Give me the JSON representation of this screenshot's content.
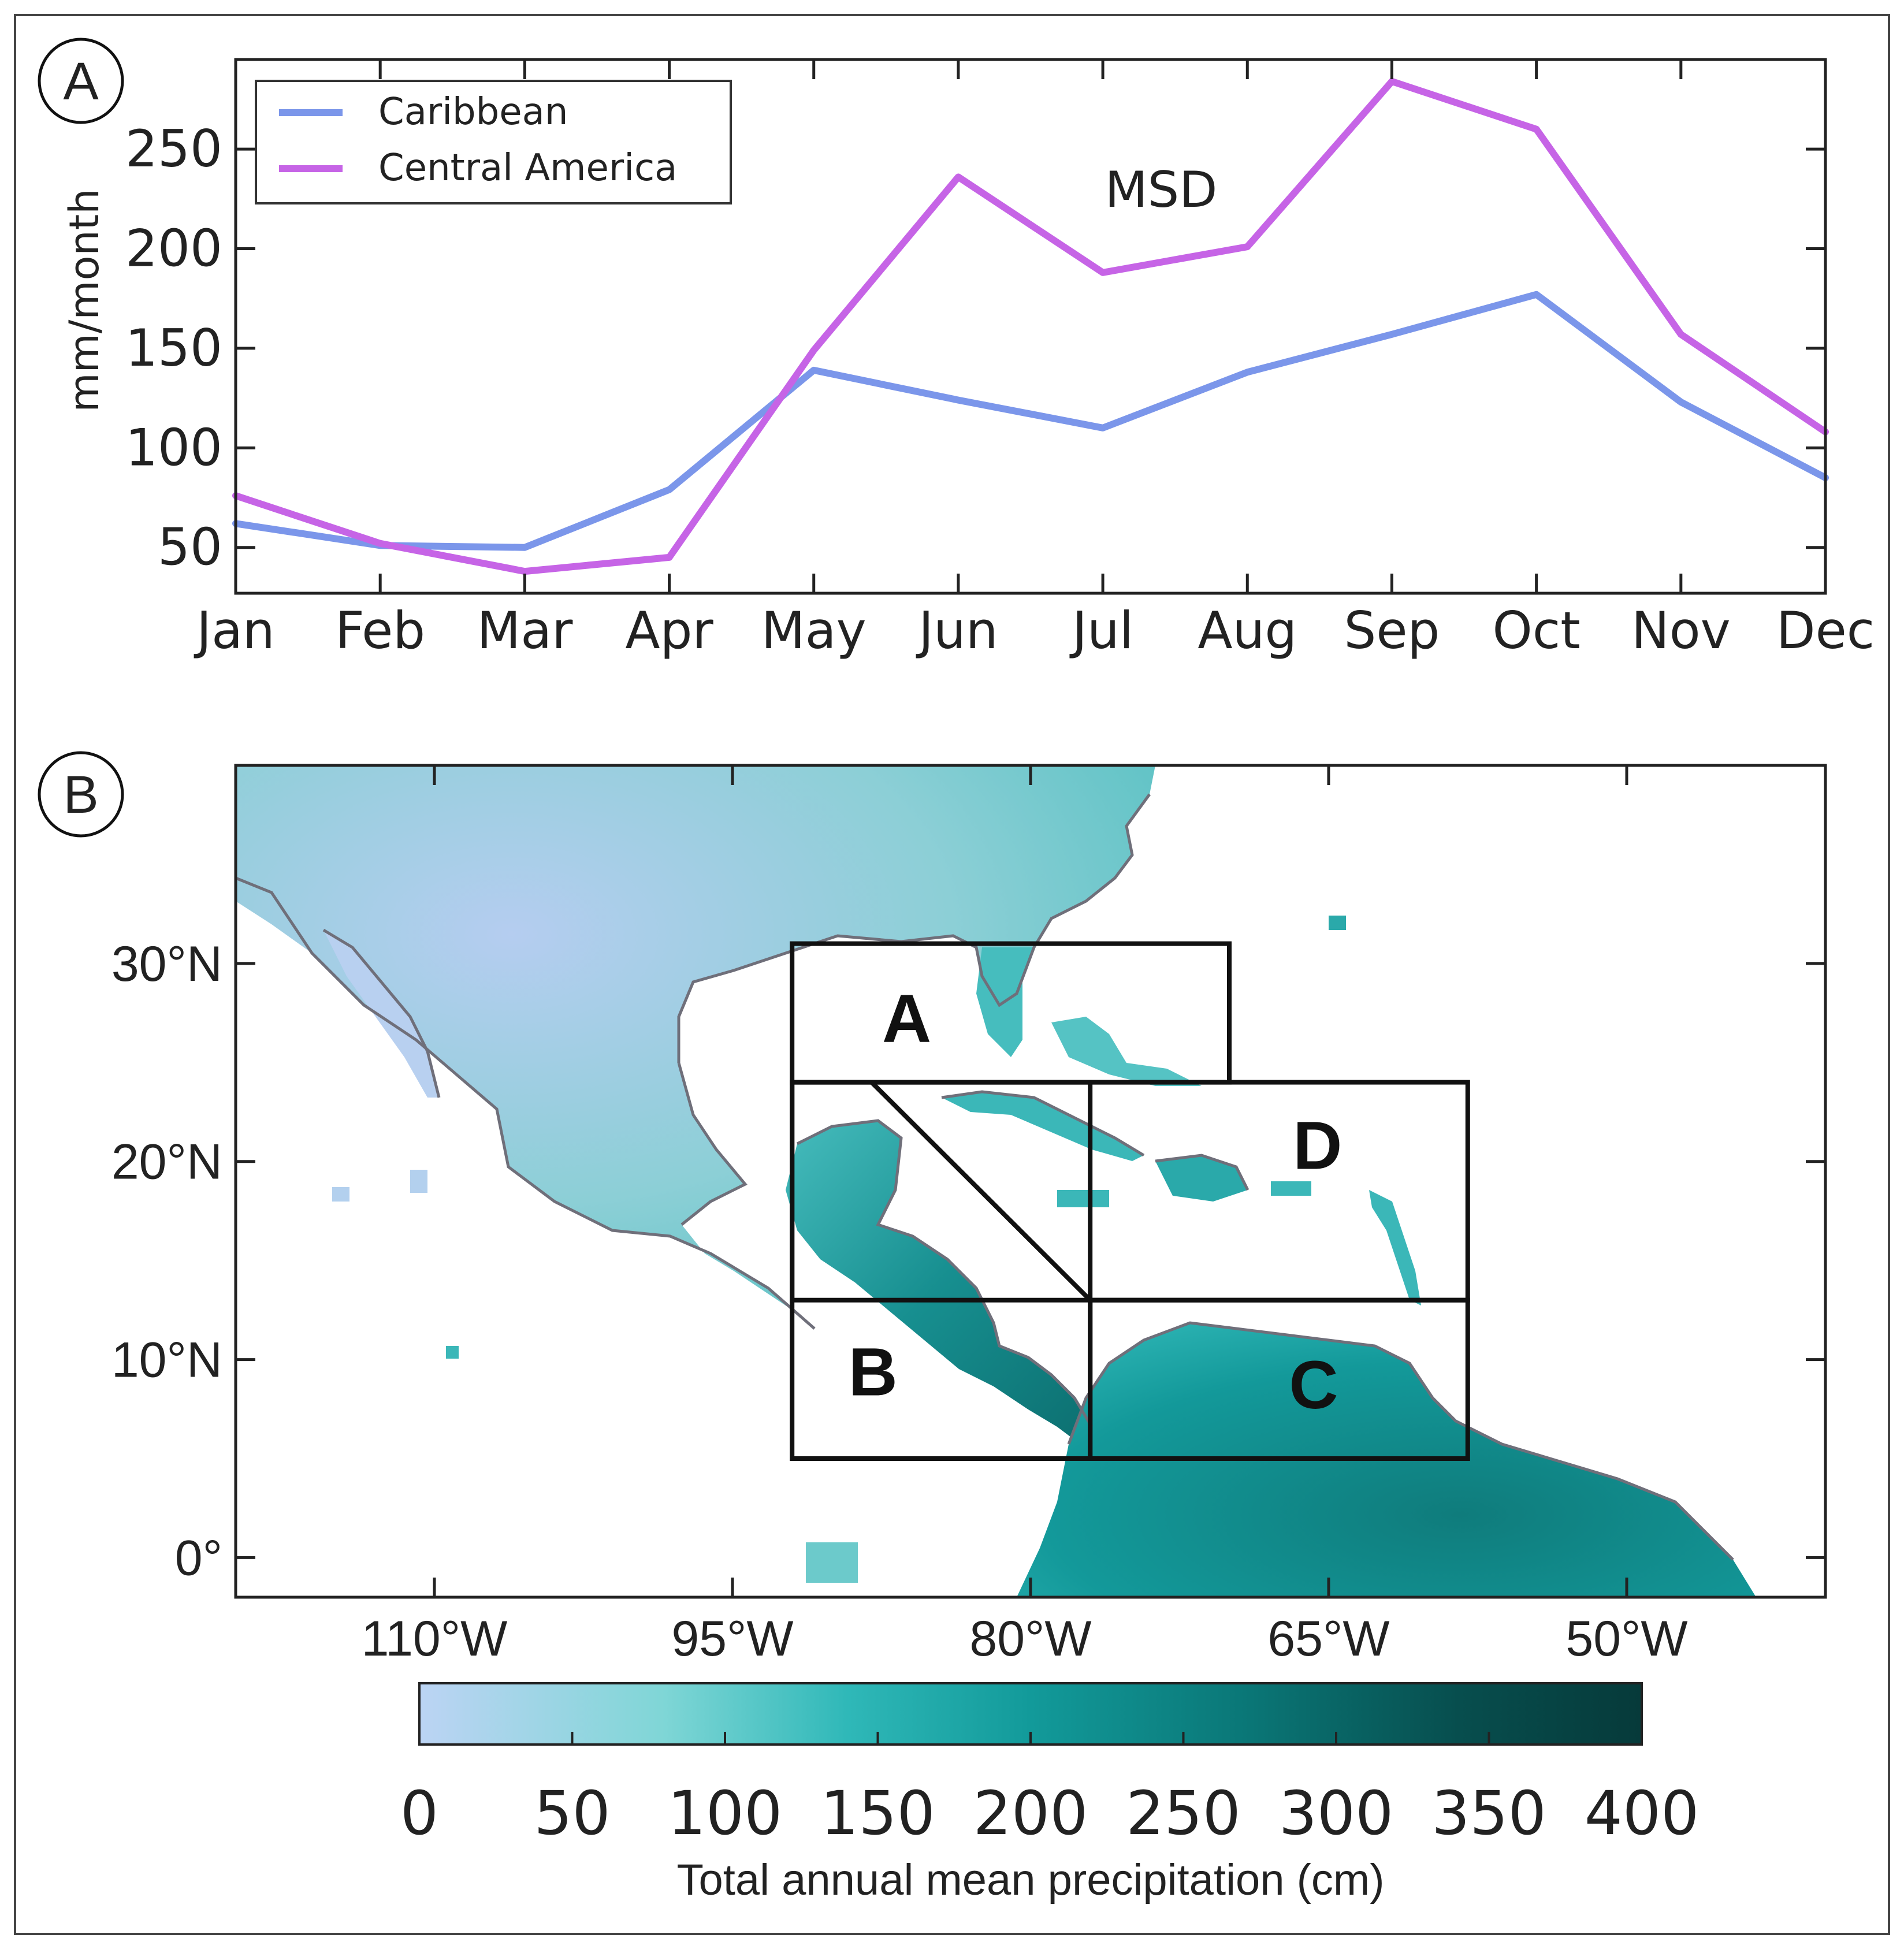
{
  "panel_a_label": "A",
  "panel_b_label": "B",
  "chart_data": [
    {
      "type": "line",
      "title": "",
      "xlabel": "",
      "ylabel": "mm/month",
      "categories": [
        "Jan",
        "Feb",
        "Mar",
        "Apr",
        "May",
        "Jun",
        "Jul",
        "Aug",
        "Sep",
        "Oct",
        "Nov",
        "Dec"
      ],
      "ylim": [
        27,
        295
      ],
      "yticks": [
        "50",
        "100",
        "150",
        "200",
        "250"
      ],
      "ytick_values": [
        50,
        100,
        150,
        200,
        250
      ],
      "series": [
        {
          "name": "Caribbean",
          "color": "#7b96ea",
          "values": [
            62,
            51,
            50,
            79,
            139,
            124,
            110,
            138,
            157,
            177,
            123,
            85
          ]
        },
        {
          "name": "Central America",
          "color": "#c664e6",
          "values": [
            76,
            52,
            38,
            45,
            149,
            236,
            188,
            201,
            284,
            260,
            157,
            108
          ]
        }
      ],
      "legend": {
        "placement": "top-left",
        "entries": [
          "Caribbean",
          "Central America"
        ]
      },
      "annotation": "MSD"
    },
    {
      "type": "heatmap",
      "title": "",
      "xlim": [
        -120,
        -40
      ],
      "ylim": [
        -2,
        40
      ],
      "xticks": [
        "110°W",
        "95°W",
        "80°W",
        "65°W",
        "50°W"
      ],
      "xtick_values": [
        -110,
        -95,
        -80,
        -65,
        -50
      ],
      "yticks": [
        "30°N",
        "20°N",
        "10°N",
        "0°"
      ],
      "ytick_values": [
        30,
        20,
        10,
        0
      ],
      "regions": [
        {
          "label": "A",
          "lon": [
            -92,
            -70
          ],
          "lat": [
            24,
            31
          ]
        },
        {
          "label": "B",
          "lon": [
            -92,
            -77
          ],
          "lat": [
            5,
            24
          ]
        },
        {
          "label": "C",
          "lon": [
            -77,
            -58
          ],
          "lat": [
            5,
            13
          ]
        },
        {
          "label": "D",
          "lon": [
            -92,
            -58
          ],
          "lat": [
            13,
            24
          ]
        }
      ],
      "colorbar": {
        "label": "Total annual mean precipitation (cm)",
        "ticks": [
          "0",
          "50",
          "100",
          "150",
          "200",
          "250",
          "300",
          "350",
          "400"
        ],
        "tick_values": [
          0,
          50,
          100,
          150,
          200,
          250,
          300,
          350,
          400
        ],
        "range": [
          0,
          400
        ],
        "colors": [
          "#bcd4f4",
          "#7fd6d6",
          "#2fb8b8",
          "#129a9a",
          "#0a7676",
          "#074e4e",
          "#063a3a"
        ]
      }
    }
  ]
}
